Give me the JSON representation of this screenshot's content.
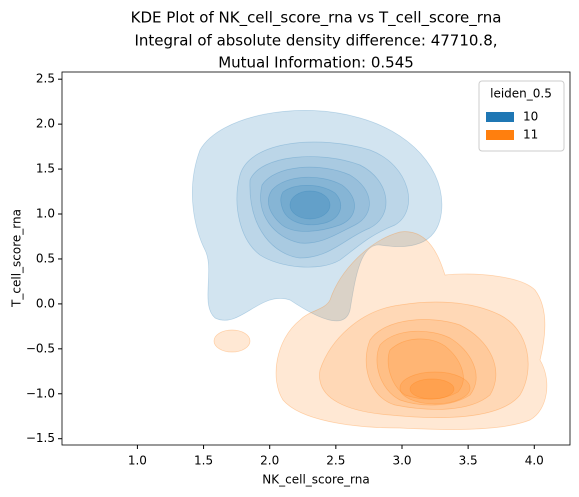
{
  "chart_data": {
    "type": "kde",
    "title": "KDE Plot of NK_cell_score_rna vs T_cell_score_rna",
    "subtitle": [
      "Integral of absolute density difference: 47710.8,",
      "Mutual Information: 0.545"
    ],
    "x_label": "NK_cell_score_rna",
    "y_label": "T_cell_score_rna",
    "xlim": [
      0.43,
      4.27
    ],
    "ylim": [
      -1.57,
      2.58
    ],
    "xticks": [
      {
        "value": 1,
        "label": "1.0"
      },
      {
        "value": 1.5,
        "label": "1.5"
      },
      {
        "value": 2,
        "label": "2.0"
      },
      {
        "value": 2.5,
        "label": "2.5"
      },
      {
        "value": 3,
        "label": "3.0"
      },
      {
        "value": 3.5,
        "label": "3.5"
      },
      {
        "value": 4,
        "label": "4.0"
      }
    ],
    "yticks": [
      {
        "value": -1.5,
        "label": "−1.5"
      },
      {
        "value": -1,
        "label": "−1.0"
      },
      {
        "value": -0.5,
        "label": "−0.5"
      },
      {
        "value": 0,
        "label": "0.0"
      },
      {
        "value": 0.5,
        "label": "0.5"
      },
      {
        "value": 1,
        "label": "1.0"
      },
      {
        "value": 1.5,
        "label": "1.5"
      },
      {
        "value": 2,
        "label": "2.0"
      },
      {
        "value": 2.5,
        "label": "2.5"
      }
    ],
    "legend_title": "leiden_0.5",
    "series": [
      {
        "name": "10",
        "color": "#1f77b4"
      },
      {
        "name": "11",
        "color": "#ff7f0e"
      }
    ]
  }
}
